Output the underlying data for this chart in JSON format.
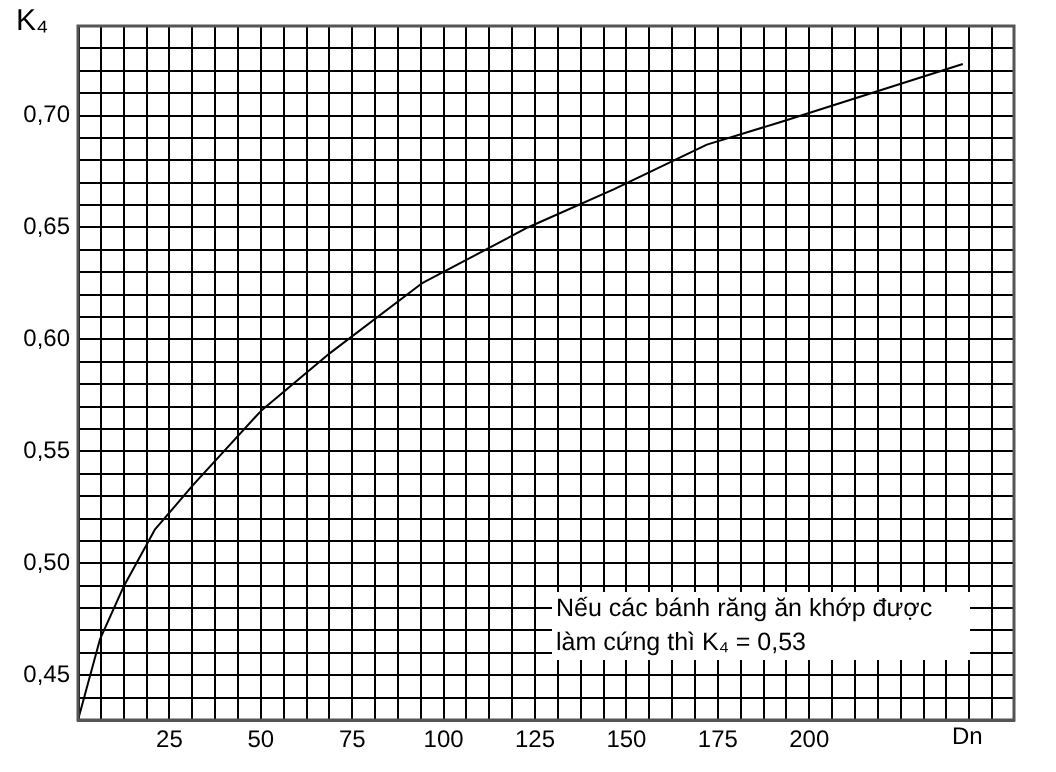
{
  "chart_data": {
    "type": "line",
    "xlabel": "Dn",
    "ylabel": "K₄",
    "x": [
      0,
      6,
      12.6,
      21,
      31.5,
      50,
      69,
      94,
      123,
      146.5,
      172,
      192,
      242
    ],
    "series": [
      {
        "color": "#000000",
        "values": [
          0.43,
          0.466,
          0.49,
          0.515,
          0.535,
          0.568,
          0.594,
          0.625,
          0.65,
          0.667,
          0.687,
          0.697,
          0.723
        ]
      }
    ],
    "xlim": [
      0,
      256
    ],
    "xticks": [
      {
        "value": 6.25,
        "label": null
      },
      {
        "value": 12.5,
        "label": null
      },
      {
        "value": 18.75,
        "label": null
      },
      25,
      {
        "value": 31.25,
        "label": null
      },
      {
        "value": 37.5,
        "label": null
      },
      {
        "value": 43.75,
        "label": null
      },
      50,
      {
        "value": 56.25,
        "label": null
      },
      {
        "value": 62.5,
        "label": null
      },
      {
        "value": 68.75,
        "label": null
      },
      75,
      {
        "value": 81.25,
        "label": null
      },
      {
        "value": 87.5,
        "label": null
      },
      {
        "value": 93.75,
        "label": null
      },
      100,
      {
        "value": 106.25,
        "label": null
      },
      {
        "value": 112.5,
        "label": null
      },
      {
        "value": 118.75,
        "label": null
      },
      125,
      {
        "value": 131.25,
        "label": null
      },
      {
        "value": 137.5,
        "label": null
      },
      {
        "value": 143.75,
        "label": null
      },
      150,
      {
        "value": 156.25,
        "label": null
      },
      {
        "value": 162.5,
        "label": null
      },
      {
        "value": 168.75,
        "label": null
      },
      175,
      {
        "value": 181.25,
        "label": null
      },
      {
        "value": 187.5,
        "label": null
      },
      {
        "value": 193.75,
        "label": null
      },
      200,
      {
        "value": 206.25,
        "label": null
      },
      {
        "value": 212.5,
        "label": null
      },
      {
        "value": 218.75,
        "label": null
      },
      {
        "value": 225,
        "label": null
      },
      {
        "value": 231.25,
        "label": null
      },
      {
        "value": 237.5,
        "label": null
      },
      {
        "value": 243.75,
        "label": null
      },
      {
        "value": 250,
        "label": null
      }
    ],
    "ylim": [
      0.43,
      0.74
    ],
    "yticks": [
      {
        "value": 0.44,
        "label": null
      },
      {
        "value": 0.45,
        "label": "0,45"
      },
      {
        "value": 0.46,
        "label": null
      },
      {
        "value": 0.47,
        "label": null
      },
      {
        "value": 0.48,
        "label": null
      },
      {
        "value": 0.49,
        "label": null
      },
      {
        "value": 0.5,
        "label": "0,50"
      },
      {
        "value": 0.51,
        "label": null
      },
      {
        "value": 0.52,
        "label": null
      },
      {
        "value": 0.53,
        "label": null
      },
      {
        "value": 0.54,
        "label": null
      },
      {
        "value": 0.55,
        "label": "0,55"
      },
      {
        "value": 0.56,
        "label": null
      },
      {
        "value": 0.57,
        "label": null
      },
      {
        "value": 0.58,
        "label": null
      },
      {
        "value": 0.59,
        "label": null
      },
      {
        "value": 0.6,
        "label": "0,60"
      },
      {
        "value": 0.61,
        "label": null
      },
      {
        "value": 0.62,
        "label": null
      },
      {
        "value": 0.63,
        "label": null
      },
      {
        "value": 0.64,
        "label": null
      },
      {
        "value": 0.65,
        "label": "0,65"
      },
      {
        "value": 0.66,
        "label": null
      },
      {
        "value": 0.67,
        "label": null
      },
      {
        "value": 0.68,
        "label": null
      },
      {
        "value": 0.69,
        "label": null
      },
      {
        "value": 0.7,
        "label": "0,70"
      },
      {
        "value": 0.71,
        "label": null
      },
      {
        "value": 0.72,
        "label": null
      },
      {
        "value": 0.73,
        "label": null
      }
    ],
    "grid": true,
    "marker": "none",
    "annotations": [
      "Nếu các bánh răng ăn khớp được làm cứng thì K₄ = 0,53"
    ]
  }
}
